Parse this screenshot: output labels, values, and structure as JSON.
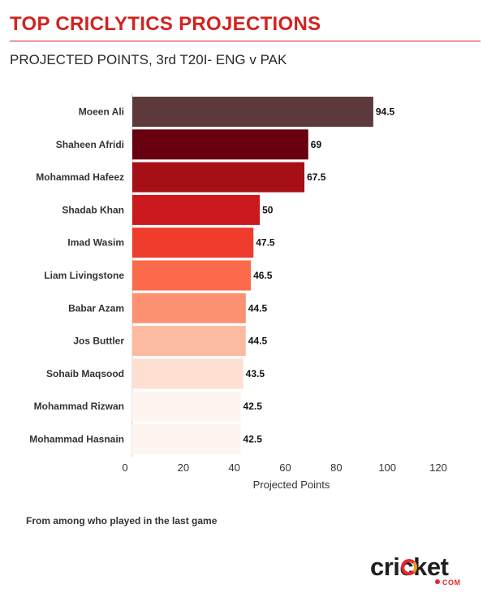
{
  "header": {
    "title": "TOP CRICLYTICS PROJECTIONS",
    "subtitle": "PROJECTED POINTS, 3rd T20I- ENG v PAK"
  },
  "footnote": "From among who played in the last game",
  "logo": {
    "word": "cricket",
    "sub": "COM"
  },
  "colors": {
    "title": "#d3231f",
    "bars": [
      "#5e393b",
      "#69000f",
      "#a50f15",
      "#cb181d",
      "#ef3b2c",
      "#fb6a4a",
      "#fc9272",
      "#fcbba1",
      "#fee0d2",
      "#fff5f0",
      "#fff5f0"
    ]
  },
  "chart_data": {
    "type": "bar",
    "orientation": "horizontal",
    "categories": [
      "Moeen Ali",
      "Shaheen Afridi",
      "Mohammad Hafeez",
      "Shadab Khan",
      "Imad Wasim",
      "Liam Livingstone",
      "Babar Azam",
      "Jos Buttler",
      "Sohaib Maqsood",
      "Mohammad Rizwan",
      "Mohammad Hasnain"
    ],
    "values": [
      94.5,
      69,
      67.5,
      50,
      47.5,
      46.5,
      44.5,
      44.5,
      43.5,
      42.5,
      42.5
    ],
    "value_labels": [
      "94.5",
      "69",
      "67.5",
      "50",
      "47.5",
      "46.5",
      "44.5",
      "44.5",
      "43.5",
      "42.5",
      "42.5"
    ],
    "xlabel": "Projected Points",
    "xlim": [
      0,
      120
    ],
    "xticks": [
      0,
      20,
      40,
      60,
      80,
      100,
      120
    ],
    "grid": false
  }
}
